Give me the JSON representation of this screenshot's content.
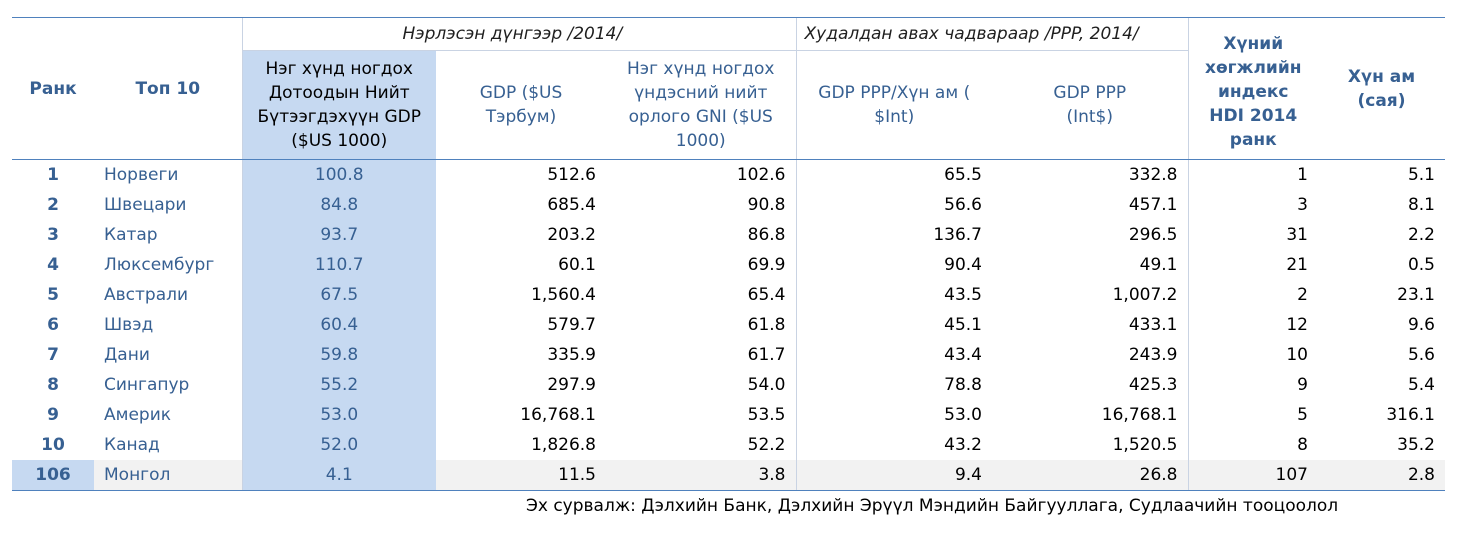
{
  "header": {
    "group_nominal": "Нэрлэсэн дүнгээр /2014/",
    "group_ppp": "Худалдан авах чадвараар /PPP, 2014/",
    "rank": "Ранк",
    "top10": "Топ 10",
    "gdp_per_capita": "Нэг хүнд ногдох Дотоодын Нийт Бүтээгдэхүүн GDP ($US 1000)",
    "gdp": "GDP ($US Тэрбум)",
    "gni_per_capita": "Нэг хүнд ногдох үндэсний нийт орлого GNI ($US 1000)",
    "gdp_ppp_per_capita": "GDP PPP/Хүн ам ( $Int)",
    "gdp_ppp": "GDP PPP (Int$)",
    "hdi": "Хүний хөгжлийн индекс HDI 2014 ранк",
    "population": "Хүн ам (сая)"
  },
  "rows": [
    {
      "rank": "1",
      "country": "Норвеги",
      "gdp_pc": "100.8",
      "gdp": "512.6",
      "gni_pc": "102.6",
      "ppp_pc": "65.5",
      "ppp": "332.8",
      "hdi": "1",
      "pop": "5.1"
    },
    {
      "rank": "2",
      "country": "Швецари",
      "gdp_pc": "84.8",
      "gdp": "685.4",
      "gni_pc": "90.8",
      "ppp_pc": "56.6",
      "ppp": "457.1",
      "hdi": "3",
      "pop": "8.1"
    },
    {
      "rank": "3",
      "country": "Катар",
      "gdp_pc": "93.7",
      "gdp": "203.2",
      "gni_pc": "86.8",
      "ppp_pc": "136.7",
      "ppp": "296.5",
      "hdi": "31",
      "pop": "2.2"
    },
    {
      "rank": "4",
      "country": "Люксембург",
      "gdp_pc": "110.7",
      "gdp": "60.1",
      "gni_pc": "69.9",
      "ppp_pc": "90.4",
      "ppp": "49.1",
      "hdi": "21",
      "pop": "0.5"
    },
    {
      "rank": "5",
      "country": "Австрали",
      "gdp_pc": "67.5",
      "gdp": "1,560.4",
      "gni_pc": "65.4",
      "ppp_pc": "43.5",
      "ppp": "1,007.2",
      "hdi": "2",
      "pop": "23.1"
    },
    {
      "rank": "6",
      "country": "Швэд",
      "gdp_pc": "60.4",
      "gdp": "579.7",
      "gni_pc": "61.8",
      "ppp_pc": "45.1",
      "ppp": "433.1",
      "hdi": "12",
      "pop": "9.6"
    },
    {
      "rank": "7",
      "country": "Дани",
      "gdp_pc": "59.8",
      "gdp": "335.9",
      "gni_pc": "61.7",
      "ppp_pc": "43.4",
      "ppp": "243.9",
      "hdi": "10",
      "pop": "5.6"
    },
    {
      "rank": "8",
      "country": "Сингапур",
      "gdp_pc": "55.2",
      "gdp": "297.9",
      "gni_pc": "54.0",
      "ppp_pc": "78.8",
      "ppp": "425.3",
      "hdi": "9",
      "pop": "5.4"
    },
    {
      "rank": "9",
      "country": "Америк",
      "gdp_pc": "53.0",
      "gdp": "16,768.1",
      "gni_pc": "53.5",
      "ppp_pc": "53.0",
      "ppp": "16,768.1",
      "hdi": "5",
      "pop": "316.1"
    },
    {
      "rank": "10",
      "country": "Канад",
      "gdp_pc": "52.0",
      "gdp": "1,826.8",
      "gni_pc": "52.2",
      "ppp_pc": "43.2",
      "ppp": "1,520.5",
      "hdi": "8",
      "pop": "35.2"
    },
    {
      "rank": "106",
      "country": "Монгол",
      "gdp_pc": "4.1",
      "gdp": "11.5",
      "gni_pc": "3.8",
      "ppp_pc": "9.4",
      "ppp": "26.8",
      "hdi": "107",
      "pop": "2.8"
    }
  ],
  "source": "Эх сурвалж: Дэлхийн Банк, Дэлхийн Эрүүл Мэндийн Байгууллага, Судлаачийн тооцоолол",
  "colors": {
    "header_text": "#376092",
    "highlight": "#c6d9f1",
    "rule": "#4f81bd"
  }
}
